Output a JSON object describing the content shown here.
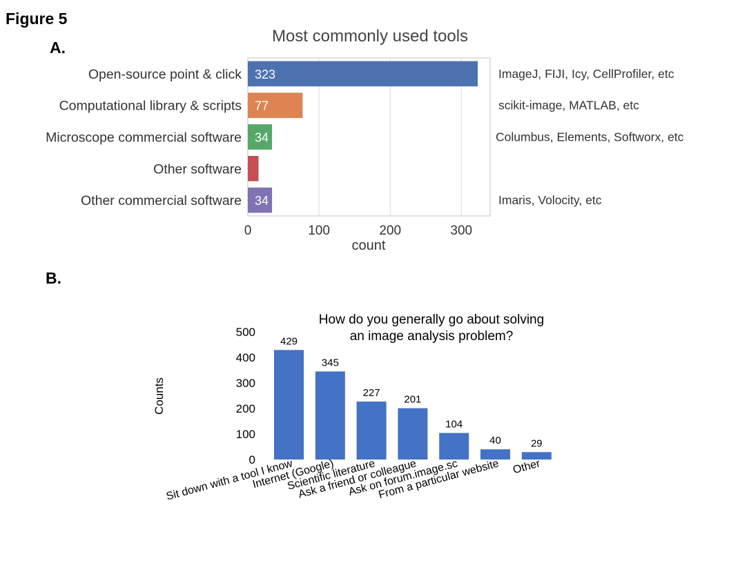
{
  "figure": {
    "title": "Figure 5",
    "panel_a_label": "A.",
    "panel_b_label": "B."
  },
  "chart_data": [
    {
      "type": "bar",
      "orientation": "horizontal",
      "title": "Most commonly used tools",
      "xlabel": "count",
      "ylabel": "",
      "xlim": [
        0,
        340
      ],
      "xticks": [
        0,
        100,
        200,
        300
      ],
      "grid": true,
      "categories": [
        "Open-source point & click",
        "Computational library & scripts",
        "Microscope commercial software",
        "Other software",
        "Other commercial software"
      ],
      "values": [
        323,
        77,
        34,
        15,
        34
      ],
      "data_labels": [
        "323",
        "77",
        "34",
        "",
        "34"
      ],
      "colors": [
        "#4c72b0",
        "#dd8452",
        "#55a868",
        "#c44e52",
        "#8172b3"
      ],
      "annotations": [
        "ImageJ, FIJI, Icy, CellProfiler, etc",
        "scikit-image, MATLAB, etc",
        "Columbus, Elements, Softworx, etc",
        "",
        "Imaris, Volocity, etc"
      ]
    },
    {
      "type": "bar",
      "orientation": "vertical",
      "title_lines": [
        "How do you generally go about solving",
        "an image analysis problem?"
      ],
      "xlabel": "",
      "ylabel": "Counts",
      "ylim": [
        0,
        500
      ],
      "yticks": [
        0,
        100,
        200,
        300,
        400,
        500
      ],
      "grid": false,
      "categories": [
        "Sit down with a tool I know",
        "Internet (Google)",
        "Scientific literature",
        "Ask a friend or colleague",
        "Ask on forum.image.sc",
        "From a particular website",
        "Other"
      ],
      "values": [
        429,
        345,
        227,
        201,
        104,
        40,
        29
      ],
      "color": "#4472c4"
    }
  ]
}
